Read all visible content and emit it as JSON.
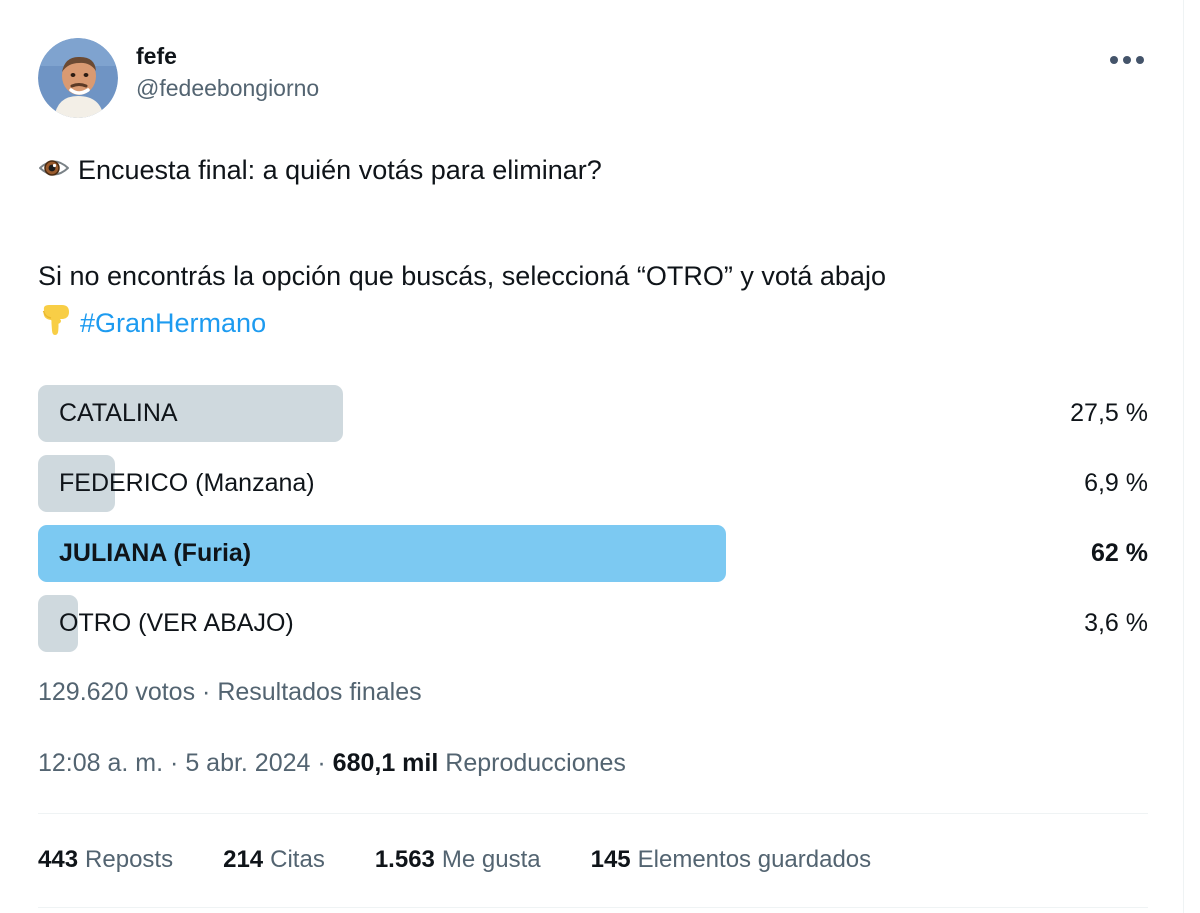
{
  "colors": {
    "text_primary": "#0f1419",
    "text_secondary": "#536471",
    "link_blue": "#1d9bf0",
    "poll_bar_gray": "#cfd9de",
    "poll_bar_winner_blue": "#7cc9f2",
    "divider": "#eff3f4"
  },
  "header": {
    "display_name": "fefe",
    "handle": "@fedeebongiorno"
  },
  "tweet": {
    "line1": "Encuesta final: a quién votás para eliminar?",
    "line2": "Si no encontrás la opción que buscás, seleccioná “OTRO” y votá abajo",
    "hashtag": "#GranHermano",
    "icons": {
      "line1_prefix": "eye-emoji",
      "line3_prefix": "backhand-index-pointing-down-emoji"
    }
  },
  "poll": {
    "options": [
      {
        "label": "CATALINA",
        "pct": 27.5,
        "display": "27,5 %",
        "winner": false
      },
      {
        "label": "FEDERICO (Manzana)",
        "pct": 6.9,
        "display": "6,9 %",
        "winner": false
      },
      {
        "label": "JULIANA (Furia)",
        "pct": 62,
        "display": "62 %",
        "winner": true
      },
      {
        "label": "OTRO (VER ABAJO)",
        "pct": 3.6,
        "display": "3,6 %",
        "winner": false
      }
    ],
    "votes": "129.620 votos",
    "separator": "·",
    "status": "Resultados finales"
  },
  "chart_data": {
    "type": "bar",
    "orientation": "horizontal",
    "title": "Encuesta final: a quién votás para eliminar?",
    "categories": [
      "CATALINA",
      "FEDERICO (Manzana)",
      "JULIANA (Furia)",
      "OTRO (VER ABAJO)"
    ],
    "values": [
      27.5,
      6.9,
      62,
      3.6
    ],
    "value_labels": [
      "27,5 %",
      "6,9 %",
      "62 %",
      "3,6 %"
    ],
    "xlabel": "",
    "ylabel": "",
    "xlim": [
      0,
      100
    ],
    "winner": "JULIANA (Furia)",
    "total_votes_label": "129.620 votos",
    "status_label": "Resultados finales"
  },
  "meta": {
    "time": "12:08 a. m.",
    "sep1": "·",
    "date": "5 abr. 2024",
    "sep2": "·",
    "views_count": "680,1 mil",
    "views_label": "Reproducciones"
  },
  "stats": [
    {
      "count": "443",
      "label": "Reposts"
    },
    {
      "count": "214",
      "label": "Citas"
    },
    {
      "count": "1.563",
      "label": "Me gusta"
    },
    {
      "count": "145",
      "label": "Elementos guardados"
    }
  ]
}
